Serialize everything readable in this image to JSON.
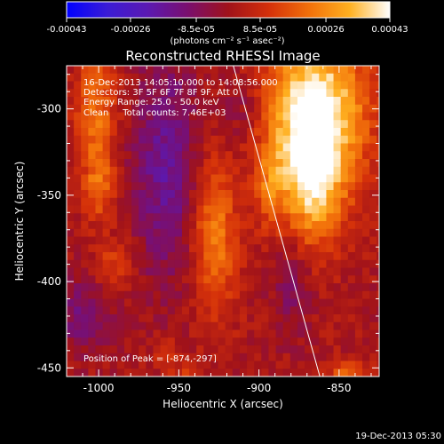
{
  "colorbar": {
    "tick_labels": [
      "-0.00043",
      "-0.00026",
      "-8.5e-05",
      "8.5e-05",
      "0.00026",
      "0.00043"
    ],
    "tick_values": [
      -0.00043,
      -0.00026,
      -8.5e-05,
      8.5e-05,
      0.00026,
      0.00043
    ],
    "range": [
      -0.00043,
      0.00043
    ],
    "units_label": "(photons cm⁻² s⁻¹ asec⁻²)",
    "colors": [
      "#0000ff",
      "#3a1cd6",
      "#5b19b2",
      "#7a0f6e",
      "#a0121a",
      "#d4300a",
      "#f2700a",
      "#ffb020",
      "#ffffff"
    ]
  },
  "title": "Reconstructed RHESSI Image",
  "annotations": {
    "line1": "16-Dec-2013 14:05:10.000 to 14:08:56.000",
    "line2": "Detectors: 3F 5F 6F 7F 8F 9F, Att 0",
    "line3": "Energy Range: 25.0 - 50.0 keV",
    "line4": "Clean     Total counts: 7.46E+03",
    "peak": "Position of Peak = [-874,-297]"
  },
  "timestamp": "19-Dec-2013 05:30",
  "chart_data": {
    "type": "heatmap",
    "title": "Reconstructed RHESSI Image",
    "xlabel": "Heliocentric X (arcsec)",
    "ylabel": "Heliocentric Y (arcsec)",
    "xlim": [
      -1020,
      -825
    ],
    "ylim": [
      -455,
      -275
    ],
    "xticks": [
      -1000,
      -950,
      -900,
      -850
    ],
    "xtick_labels": [
      "-1000",
      "-950",
      "-900",
      "-850"
    ],
    "yticks": [
      -450,
      -400,
      -350,
      -300
    ],
    "ytick_labels": [
      "-450",
      "-400",
      "-350",
      "-300"
    ],
    "peak_position": [
      -874,
      -297
    ],
    "limb_line": [
      [
        -916,
        -275
      ],
      [
        -862,
        -455
      ]
    ],
    "sources": [
      {
        "x": -865,
        "y": -300,
        "sx": 22,
        "sy": 30,
        "amp": 0.00043
      },
      {
        "x": -866,
        "y": -345,
        "sx": 14,
        "sy": 25,
        "amp": 0.0003
      },
      {
        "x": -1002,
        "y": -300,
        "sx": 9,
        "sy": 24,
        "amp": 0.0002
      },
      {
        "x": -1000,
        "y": -345,
        "sx": 7,
        "sy": 14,
        "amp": 0.00017
      },
      {
        "x": -990,
        "y": -390,
        "sx": 8,
        "sy": 10,
        "amp": 0.00012
      },
      {
        "x": -928,
        "y": -375,
        "sx": 10,
        "sy": 32,
        "amp": 0.00022
      },
      {
        "x": -893,
        "y": -345,
        "sx": 7,
        "sy": 18,
        "amp": 0.00014
      },
      {
        "x": -958,
        "y": -440,
        "sx": 6,
        "sy": 6,
        "amp": 9e-05
      },
      {
        "x": -948,
        "y": -455,
        "sx": 7,
        "sy": 5,
        "amp": 9e-05
      },
      {
        "x": -845,
        "y": -452,
        "sx": 10,
        "sy": 5,
        "amp": 0.00015
      },
      {
        "x": -958,
        "y": -335,
        "sx": 14,
        "sy": 45,
        "amp": -0.00018
      },
      {
        "x": -1010,
        "y": -420,
        "sx": 12,
        "sy": 15,
        "amp": -0.00012
      },
      {
        "x": -880,
        "y": -400,
        "sx": 8,
        "sy": 20,
        "amp": -0.00011
      },
      {
        "x": -910,
        "y": -300,
        "sx": 10,
        "sy": 15,
        "amp": -9e-05
      }
    ]
  }
}
